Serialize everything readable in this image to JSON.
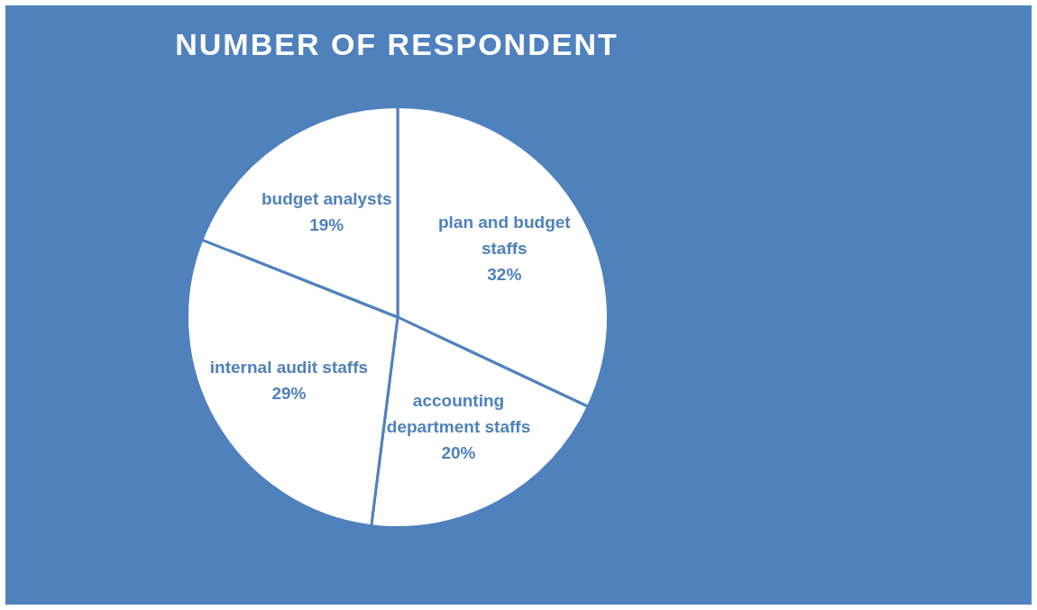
{
  "chart_data": {
    "type": "pie",
    "title": "NUMBER OF RESPONDENT",
    "categories": [
      "plan and budget staffs",
      "accounting department staffs",
      "internal audit staffs",
      "budget analysts"
    ],
    "values": [
      32,
      20,
      29,
      19
    ],
    "colors": [
      "#ffffff",
      "#ffffff",
      "#ffffff",
      "#ffffff"
    ],
    "value_labels": [
      "32%",
      "20%",
      "29%",
      "19%"
    ],
    "legend": false
  }
}
